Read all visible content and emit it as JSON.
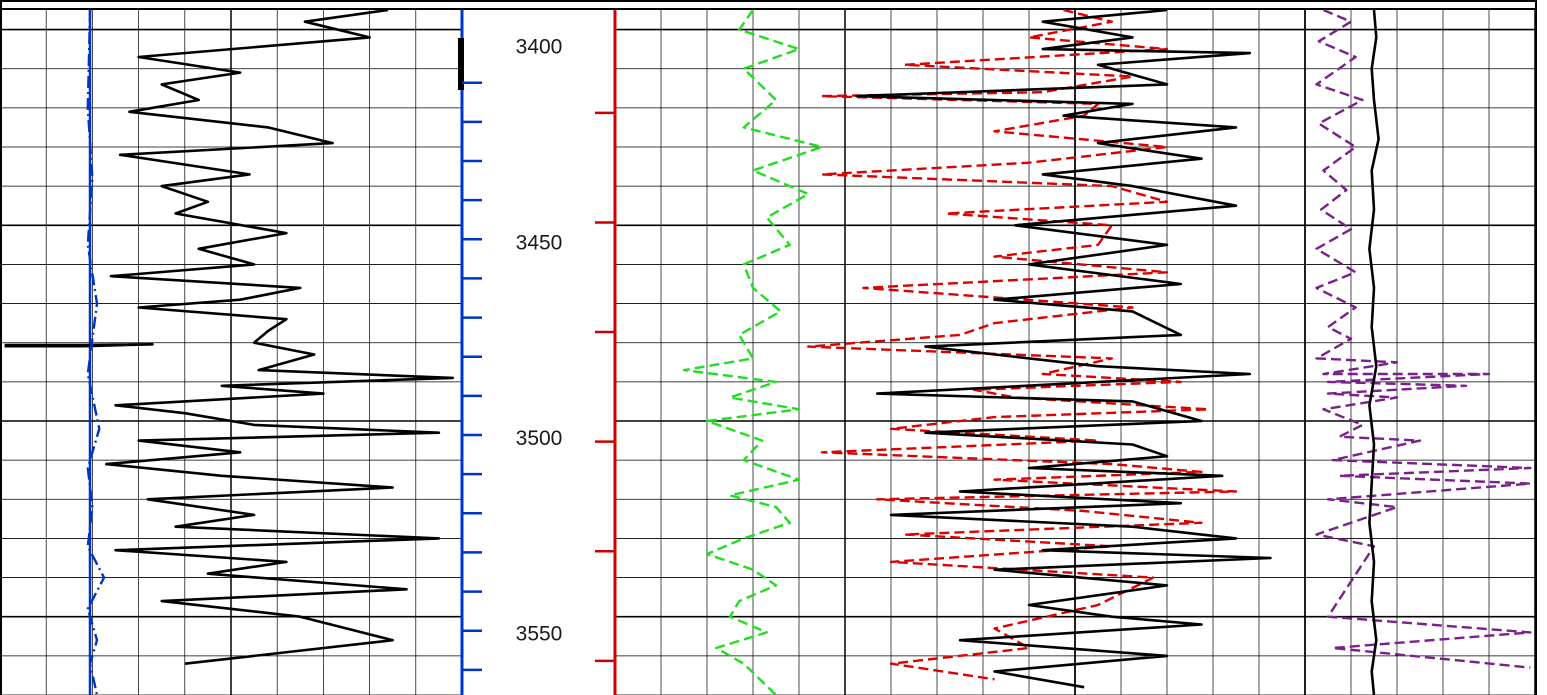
{
  "chart_data": {
    "type": "line",
    "title": "",
    "ylabel": "",
    "y_axis": "depth",
    "ylim": [
      3395,
      3570
    ],
    "depth_ticks": [
      3400,
      3450,
      3500,
      3550
    ],
    "minor_depth_step": 10,
    "grid": true,
    "legend": "none",
    "tracks": [
      {
        "name": "",
        "series": [
          {
            "name": "",
            "color": "#000000",
            "style": "solid",
            "x": [
              0.84,
              0.66,
              0.8,
              0.3,
              0.52,
              0.35,
              0.43,
              0.28,
              0.58,
              0.72,
              0.26,
              0.54,
              0.35,
              0.45,
              0.38,
              0.62,
              0.43,
              0.55,
              0.24,
              0.65,
              0.52,
              0.3,
              0.62,
              0.58,
              0.55,
              0.68,
              0.56,
              0.98,
              0.48,
              0.7,
              0.25,
              0.4,
              0.55,
              0.95,
              0.3,
              0.52,
              0.23,
              0.48,
              0.85,
              0.32,
              0.55,
              0.38,
              0.95,
              0.25,
              0.62,
              0.45,
              0.88,
              0.35,
              0.65,
              0.85,
              0.4
            ],
            "depth": [
              3395,
              3398,
              3402,
              3407,
              3411,
              3414,
              3418,
              3421,
              3425,
              3429,
              3432,
              3437,
              3440,
              3444,
              3447,
              3452,
              3456,
              3460,
              3463,
              3466,
              3469,
              3471,
              3474,
              3477,
              3480,
              3483,
              3487,
              3489,
              3491,
              3493,
              3496,
              3498,
              3501,
              3503,
              3505,
              3508,
              3511,
              3514,
              3517,
              3520,
              3524,
              3527,
              3530,
              3533,
              3536,
              3539,
              3543,
              3546,
              3550,
              3556,
              3562
            ]
          },
          {
            "name": "",
            "color": "#000000",
            "style": "solid",
            "x": [
              0.01,
              0.18,
              0.33,
              0.18,
              0.01
            ],
            "depth": [
              3480.6,
              3480.6,
              3480.4,
              3480.9,
              3480.9
            ]
          }
        ]
      },
      {
        "name": "",
        "series": [
          {
            "name": "",
            "color": "#0033cc",
            "style": "dashdot",
            "x": [
              0.195,
              0.19,
              0.2,
              0.19,
              0.21,
              0.19,
              0.215,
              0.19,
              0.2,
              0.19,
              0.225,
              0.19,
              0.21,
              0.195,
              0.21
            ],
            "depth": [
              3395,
              3420,
              3438,
              3455,
              3470,
              3488,
              3502,
              3512,
              3522,
              3532,
              3540,
              3548,
              3556,
              3562,
              3570
            ]
          }
        ]
      },
      {
        "name": "",
        "series": [
          {
            "name": "",
            "color": "#22dd22",
            "style": "dashed",
            "x": [
              0.3,
              0.27,
              0.4,
              0.28,
              0.35,
              0.28,
              0.45,
              0.3,
              0.42,
              0.33,
              0.38,
              0.28,
              0.3,
              0.36,
              0.27,
              0.3,
              0.15,
              0.35,
              0.25,
              0.4,
              0.2,
              0.32,
              0.28,
              0.4,
              0.25,
              0.35,
              0.38,
              0.28,
              0.2,
              0.3,
              0.35,
              0.27,
              0.25,
              0.33,
              0.22,
              0.28,
              0.35
            ],
            "depth": [
              3395,
              3400,
              3405,
              3410,
              3418,
              3425,
              3430,
              3436,
              3442,
              3448,
              3455,
              3460,
              3466,
              3472,
              3478,
              3484,
              3487,
              3490,
              3494,
              3497,
              3500,
              3505,
              3510,
              3515,
              3519,
              3522,
              3526,
              3530,
              3534,
              3538,
              3542,
              3546,
              3550,
              3554,
              3558,
              3562,
              3570
            ]
          }
        ]
      },
      {
        "name": "",
        "series": [
          {
            "name": "",
            "color": "#dd0000",
            "style": "dashed",
            "x": [
              0.65,
              0.72,
              0.6,
              0.8,
              0.42,
              0.75,
              0.62,
              0.3,
              0.7,
              0.68,
              0.55,
              0.8,
              0.6,
              0.3,
              0.72,
              0.8,
              0.48,
              0.72,
              0.7,
              0.55,
              0.8,
              0.36,
              0.75,
              0.55,
              0.5,
              0.28,
              0.72,
              0.62,
              0.82,
              0.52,
              0.58,
              0.86,
              0.55,
              0.4,
              0.7,
              0.3,
              0.72,
              0.85,
              0.55,
              0.9,
              0.38,
              0.68,
              0.85,
              0.42,
              0.72,
              0.4,
              0.78,
              0.7,
              0.55,
              0.6,
              0.4,
              0.55
            ],
            "depth": [
              3395,
              3398,
              3402,
              3405,
              3409,
              3412,
              3416,
              3417,
              3419,
              3422,
              3426,
              3430,
              3434,
              3437,
              3440,
              3444,
              3447,
              3450,
              3455,
              3458,
              3462,
              3466,
              3471,
              3475,
              3478,
              3481,
              3484,
              3488,
              3490,
              3492,
              3494,
              3497,
              3499,
              3502,
              3505,
              3508,
              3511,
              3513,
              3515,
              3518,
              3520,
              3523,
              3526,
              3529,
              3532,
              3536,
              3540,
              3547,
              3553,
              3558,
              3562,
              3566
            ]
          }
        ]
      },
      {
        "name": "",
        "series": [
          {
            "name": "",
            "color": "#000000",
            "style": "solid",
            "x": [
              0.8,
              0.62,
              0.75,
              0.62,
              0.92,
              0.7,
              0.8,
              0.35,
              0.75,
              0.65,
              0.9,
              0.7,
              0.85,
              0.62,
              0.75,
              0.9,
              0.58,
              0.8,
              0.6,
              0.82,
              0.55,
              0.75,
              0.82,
              0.45,
              0.7,
              0.92,
              0.38,
              0.75,
              0.85,
              0.45,
              0.75,
              0.8,
              0.6,
              0.88,
              0.5,
              0.82,
              0.4,
              0.75,
              0.9,
              0.62,
              0.95,
              0.55,
              0.8,
              0.6,
              0.72,
              0.85,
              0.5,
              0.8,
              0.55,
              0.68
            ],
            "depth": [
              3395,
              3398,
              3402,
              3405,
              3406,
              3409,
              3414,
              3417,
              3419,
              3422,
              3425,
              3429,
              3433,
              3437,
              3440,
              3445,
              3450,
              3455,
              3460,
              3465,
              3469,
              3472,
              3478,
              3481,
              3486,
              3488,
              3493,
              3495,
              3500,
              3503,
              3506,
              3509,
              3512,
              3514,
              3518,
              3521,
              3524,
              3527,
              3530,
              3533,
              3535,
              3538,
              3542,
              3547,
              3550,
              3552,
              3556,
              3560,
              3564,
              3568
            ]
          }
        ]
      },
      {
        "name": "",
        "series": [
          {
            "name": "",
            "color": "#7a1f8c",
            "style": "dashed",
            "x": [
              0.08,
              0.2,
              0.06,
              0.22,
              0.05,
              0.25,
              0.06,
              0.22,
              0.08,
              0.18,
              0.07,
              0.2,
              0.05,
              0.22,
              0.05,
              0.22,
              0.1,
              0.2,
              0.05,
              0.4,
              0.08,
              0.8,
              0.1,
              0.7,
              0.1,
              0.4,
              0.08,
              0.25,
              0.15,
              0.5,
              0.12,
              0.98,
              0.15,
              0.98,
              0.1,
              0.4,
              0.05,
              0.3,
              0.1,
              0.98,
              0.12,
              0.98
            ],
            "depth": [
              3395,
              3398,
              3403,
              3407,
              3414,
              3418,
              3424,
              3430,
              3436,
              3441,
              3446,
              3451,
              3456,
              3462,
              3466,
              3471,
              3476,
              3479,
              3484,
              3485,
              3488,
              3488,
              3490,
              3491,
              3493,
              3494,
              3497,
              3501,
              3504,
              3505,
              3510,
              3512,
              3514,
              3516,
              3520,
              3522,
              3529,
              3532,
              3550,
              3554,
              3558,
              3563
            ]
          },
          {
            "name": "",
            "color": "#000000",
            "style": "solid",
            "x": [
              0.3,
              0.31,
              0.29,
              0.3,
              0.32,
              0.29,
              0.3,
              0.28,
              0.3,
              0.29,
              0.31,
              0.28,
              0.3,
              0.29,
              0.28,
              0.3,
              0.29,
              0.31,
              0.29,
              0.3
            ],
            "depth": [
              3395,
              3402,
              3410,
              3418,
              3428,
              3436,
              3446,
              3456,
              3466,
              3476,
              3486,
              3496,
              3506,
              3516,
              3526,
              3536,
              3546,
              3556,
              3564,
              3570
            ]
          }
        ]
      }
    ]
  }
}
